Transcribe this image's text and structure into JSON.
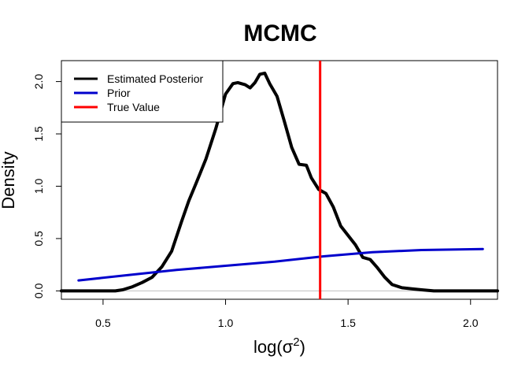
{
  "chart_data": {
    "type": "line",
    "title": "MCMC",
    "xlabel": "log(σ²)",
    "xlabel_parts": {
      "prefix": "log(",
      "base": "σ",
      "superscript": "2",
      "suffix": ")"
    },
    "ylabel": "Density",
    "xlim": [
      0.33,
      2.11
    ],
    "ylim": [
      -0.08,
      2.2
    ],
    "x_ticks": [
      0.5,
      1.0,
      1.5,
      2.0
    ],
    "x_tick_labels": [
      "0.5",
      "1.0",
      "1.5",
      "2.0"
    ],
    "y_ticks": [
      0.0,
      0.5,
      1.0,
      1.5,
      2.0
    ],
    "y_tick_labels": [
      "0.0",
      "0.5",
      "1.0",
      "1.5",
      "2.0"
    ],
    "legend": {
      "placement": "top-left",
      "entries": [
        {
          "name": "Estimated Posterior",
          "color": "#000000"
        },
        {
          "name": "Prior",
          "color": "#0000cc"
        },
        {
          "name": "True Value",
          "color": "#ff0000"
        }
      ]
    },
    "series": [
      {
        "name": "Estimated Posterior",
        "color": "#000000",
        "x": [
          0.33,
          0.55,
          0.58,
          0.62,
          0.66,
          0.7,
          0.74,
          0.78,
          0.82,
          0.85,
          0.88,
          0.92,
          0.96,
          1.0,
          1.03,
          1.05,
          1.08,
          1.1,
          1.12,
          1.14,
          1.16,
          1.18,
          1.21,
          1.24,
          1.27,
          1.3,
          1.33,
          1.35,
          1.38,
          1.41,
          1.44,
          1.47,
          1.5,
          1.53,
          1.56,
          1.59,
          1.62,
          1.65,
          1.68,
          1.72,
          1.76,
          1.8,
          1.85,
          2.11
        ],
        "y": [
          0.0,
          0.0,
          0.01,
          0.04,
          0.08,
          0.13,
          0.23,
          0.38,
          0.66,
          0.86,
          1.03,
          1.26,
          1.55,
          1.88,
          1.98,
          1.99,
          1.97,
          1.94,
          1.99,
          2.07,
          2.08,
          1.98,
          1.86,
          1.62,
          1.37,
          1.21,
          1.2,
          1.08,
          0.97,
          0.93,
          0.8,
          0.62,
          0.53,
          0.44,
          0.32,
          0.3,
          0.22,
          0.13,
          0.06,
          0.03,
          0.02,
          0.01,
          0.0,
          0.0
        ]
      },
      {
        "name": "Prior",
        "color": "#0000cc",
        "x": [
          0.4,
          0.6,
          0.8,
          1.0,
          1.2,
          1.4,
          1.6,
          1.8,
          2.05
        ],
        "y": [
          0.1,
          0.15,
          0.2,
          0.24,
          0.28,
          0.33,
          0.37,
          0.39,
          0.4
        ]
      }
    ],
    "reference_lines": [
      {
        "name": "True Value",
        "orientation": "vertical",
        "x": 1.386,
        "color": "#ff0000"
      }
    ],
    "grid": false
  }
}
